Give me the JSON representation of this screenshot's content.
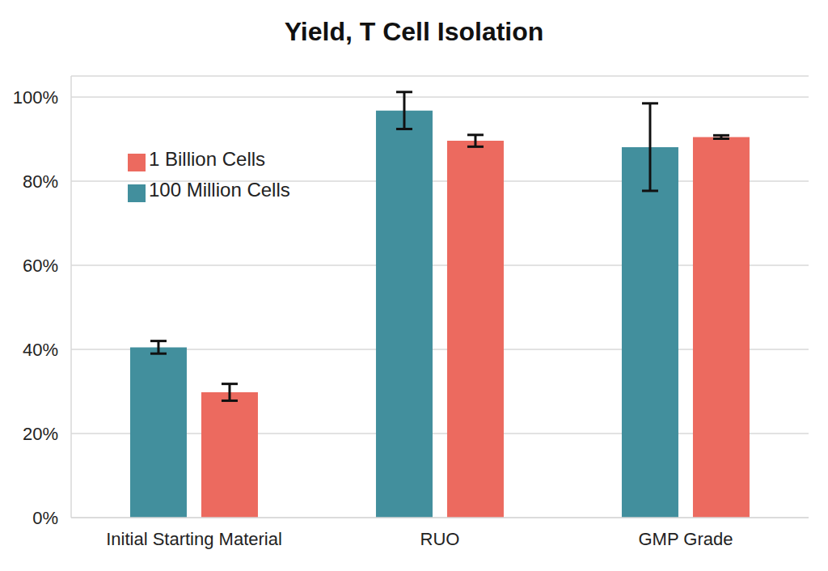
{
  "chart_data": {
    "type": "bar",
    "title": "Yield, T Cell Isolation",
    "categories": [
      "Initial Starting Material",
      "RUO",
      "GMP Grade"
    ],
    "series": [
      {
        "name": "100 Million Cells",
        "color": "#428f9d",
        "values": [
          40.5,
          96.8,
          88.1
        ],
        "errors": [
          1.5,
          4.4,
          10.4
        ]
      },
      {
        "name": "1 Billion Cells",
        "color": "#ec6a5f",
        "values": [
          29.8,
          89.6,
          90.5
        ],
        "errors": [
          2.0,
          1.4,
          0.4
        ]
      }
    ],
    "ylim": [
      0,
      105
    ],
    "yticks": [
      {
        "value": 0,
        "label": "0%"
      },
      {
        "value": 20,
        "label": "20%"
      },
      {
        "value": 40,
        "label": "40%"
      },
      {
        "value": 60,
        "label": "60%"
      },
      {
        "value": 80,
        "label": "80%"
      },
      {
        "value": 100,
        "label": "100%"
      }
    ],
    "grid": true,
    "legend": "upper left"
  }
}
